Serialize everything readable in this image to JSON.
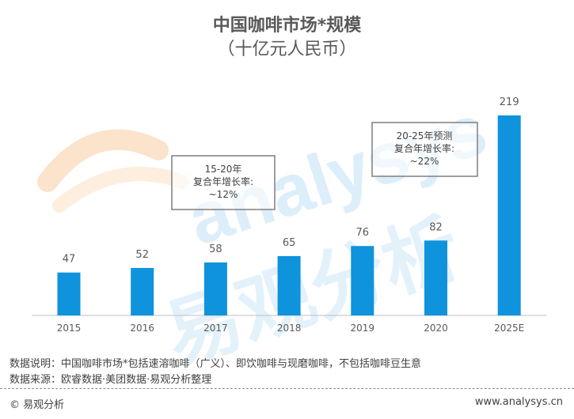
{
  "chart_data": {
    "type": "bar",
    "title": "中国咖啡市场*规模",
    "subtitle": "（十亿元人民币）",
    "categories": [
      "2015",
      "2016",
      "2017",
      "2018",
      "2019",
      "2020",
      "2025E"
    ],
    "values": [
      47,
      52,
      58,
      65,
      76,
      82,
      219
    ],
    "value_labels": [
      "47",
      "52",
      "58",
      "65",
      "76",
      "82",
      "219"
    ],
    "ylim": [
      0,
      219
    ],
    "bar_color": "#0f93dc",
    "annotations": [
      {
        "lines": [
          "15-20年",
          "复合年增长率:",
          "~12%"
        ]
      },
      {
        "lines": [
          "20-25年预测",
          "复合年增长率:",
          "~22%"
        ]
      }
    ]
  },
  "notes": {
    "explanation": "数据说明：中国咖啡市场*包括速溶咖啡（广义）、即饮咖啡与现磨咖啡，不包括咖啡豆生意",
    "source": "数据来源：欧睿数据·美团数据·易观分析整理"
  },
  "footer": {
    "copyright": "© 易观分析",
    "url": "www.analysys.cn"
  },
  "watermark": {
    "latin": "analysys",
    "chinese": "易观分析"
  }
}
